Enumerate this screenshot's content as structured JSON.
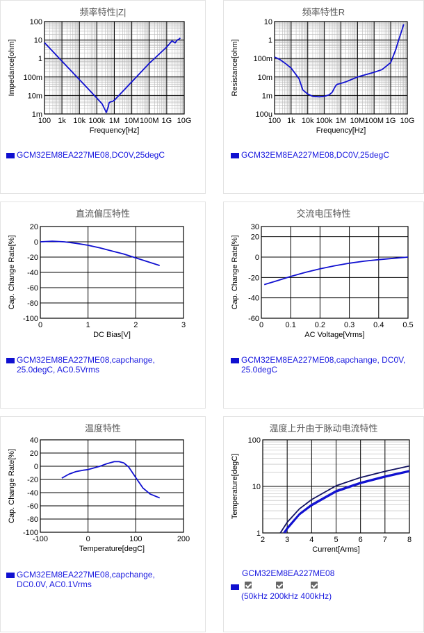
{
  "colors": {
    "curve": "#1010d0",
    "curve_dark": "#101060",
    "legend_text": "#1a1adf",
    "grid": "#000000"
  },
  "panels": [
    {
      "title": "频率特性|Z|",
      "legend_lines": [
        "GCM32EM8EA227ME08,DC0V,25degC"
      ]
    },
    {
      "title": "频率特性R",
      "legend_lines": [
        "GCM32EM8EA227ME08,DC0V,25degC"
      ]
    },
    {
      "title": "直流偏压特性",
      "legend_lines": [
        "GCM32EM8EA227ME08,capchange,",
        "25.0degC, AC0.5Vrms"
      ]
    },
    {
      "title": "交流电压特性",
      "legend_lines": [
        "GCM32EM8EA227ME08,capchange, DC0V,",
        "25.0degC"
      ]
    },
    {
      "title": "温度特性",
      "legend_lines": [
        "GCM32EM8EA227ME08,capchange,",
        "DC0.0V, AC0.1Vrms"
      ]
    },
    {
      "title": "温度上升由于脉动电流特性",
      "legend_lines": [
        "GCM32EM8EA227ME08"
      ],
      "checks": [
        "50kHz",
        "200kHz",
        "400kHz"
      ],
      "paren_open": "(",
      "paren_close": ")"
    }
  ],
  "chart_data": [
    {
      "type": "line",
      "xscale": "log",
      "yscale": "log",
      "xlabel": "Frequency[Hz]",
      "ylabel": "Impedance[ohm]",
      "xticks": [
        "100",
        "1k",
        "10k",
        "100k",
        "1M",
        "10M",
        "100M",
        "1G",
        "10G"
      ],
      "yticks": [
        "1m",
        "10m",
        "100m",
        "1",
        "10",
        "100"
      ],
      "xlim": [
        100,
        10000000000
      ],
      "ylim": [
        0.001,
        100
      ],
      "series": [
        {
          "name": "GCM32EM8EA227ME08,DC0V,25degC",
          "x": [
            100,
            1000,
            10000,
            100000,
            200000,
            350000,
            450000,
            500000,
            600000,
            800000,
            1000000,
            2000000,
            10000000,
            100000000,
            1000000000,
            2000000000,
            3000000000,
            4000000000,
            5000000000,
            6000000000
          ],
          "y": [
            7.2,
            0.72,
            0.072,
            0.0072,
            0.0035,
            0.0012,
            0.0025,
            0.004,
            0.0045,
            0.0048,
            0.0055,
            0.011,
            0.055,
            0.55,
            4.2,
            9,
            7,
            10,
            11,
            13
          ]
        }
      ]
    },
    {
      "type": "line",
      "xscale": "log",
      "yscale": "log",
      "xlabel": "Frequency[Hz]",
      "ylabel": "Resistance[ohm]",
      "xticks": [
        "100",
        "1k",
        "10k",
        "100k",
        "1M",
        "10M",
        "100M",
        "1G",
        "10G"
      ],
      "yticks": [
        "100u",
        "1m",
        "10m",
        "100m",
        "1",
        "10"
      ],
      "xlim": [
        100,
        10000000000
      ],
      "ylim": [
        0.0001,
        10
      ],
      "series": [
        {
          "name": "GCM32EM8EA227ME08,DC0V,25degC",
          "x": [
            100,
            200,
            500,
            1000,
            3000,
            5000,
            10000,
            20000,
            50000,
            100000,
            200000,
            300000,
            400000,
            500000,
            600000,
            1000000,
            2000000,
            10000000,
            100000000,
            300000000,
            1000000000,
            2000000000,
            3000000000,
            5000000000,
            6000000000
          ],
          "y": [
            0.12,
            0.09,
            0.05,
            0.03,
            0.008,
            0.002,
            0.0012,
            0.0009,
            0.00085,
            0.0009,
            0.0011,
            0.0015,
            0.0025,
            0.0035,
            0.004,
            0.0045,
            0.0055,
            0.01,
            0.018,
            0.025,
            0.06,
            0.3,
            1.0,
            4.0,
            7.0
          ]
        }
      ]
    },
    {
      "type": "line",
      "xlabel": "DC Bias[V]",
      "ylabel": "Cap. Change Rate[%]",
      "xlim": [
        0,
        3
      ],
      "ylim": [
        -100,
        20
      ],
      "xticks": [
        0,
        1,
        2,
        3
      ],
      "yticks": [
        20,
        0,
        -20,
        -40,
        -60,
        -80,
        -100
      ],
      "series": [
        {
          "name": "GCM32EM8EA227ME08,capchange,25.0degC, AC0.5Vrms",
          "x": [
            0,
            0.25,
            0.5,
            0.75,
            1,
            1.25,
            1.5,
            1.75,
            2,
            2.25,
            2.5
          ],
          "y": [
            0,
            0.8,
            0,
            -2,
            -4.5,
            -8,
            -12,
            -16,
            -21,
            -26,
            -31
          ]
        }
      ]
    },
    {
      "type": "line",
      "xlabel": "AC Voltage[Vrms]",
      "ylabel": "Cap. Change Rate[%]",
      "xlim": [
        0,
        0.5
      ],
      "ylim": [
        -60,
        30
      ],
      "xticks": [
        0,
        0.1,
        0.2,
        0.3,
        0.4,
        0.5
      ],
      "yticks": [
        30,
        20,
        0,
        -20,
        -40,
        -60
      ],
      "series": [
        {
          "name": "GCM32EM8EA227ME08,capchange, DC0V,25.0degC",
          "x": [
            0.01,
            0.05,
            0.1,
            0.15,
            0.2,
            0.25,
            0.3,
            0.35,
            0.4,
            0.45,
            0.5
          ],
          "y": [
            -27,
            -23.5,
            -19,
            -15,
            -11.5,
            -8.5,
            -6,
            -4,
            -2.5,
            -1.2,
            0
          ]
        }
      ]
    },
    {
      "type": "line",
      "xlabel": "Temperature[degC]",
      "ylabel": "Cap. Change Rate[%]",
      "xlim": [
        -100,
        200
      ],
      "ylim": [
        -100,
        40
      ],
      "xticks": [
        -100,
        0,
        100,
        200
      ],
      "yticks": [
        40,
        20,
        0,
        -20,
        -40,
        -60,
        -80,
        -100
      ],
      "series": [
        {
          "name": "GCM32EM8EA227ME08,capchange,DC0.0V, AC0.1Vrms",
          "x": [
            -55,
            -40,
            -25,
            -10,
            0,
            10,
            25,
            40,
            55,
            65,
            75,
            85,
            100,
            115,
            130,
            150
          ],
          "y": [
            -18,
            -12,
            -8,
            -6,
            -5,
            -3,
            0,
            4,
            7,
            7,
            5,
            -1,
            -17,
            -33,
            -42,
            -48
          ]
        }
      ]
    },
    {
      "type": "line",
      "yscale": "log",
      "xlabel": "Current[Arms]",
      "ylabel": "Temperature[degC]",
      "xlim": [
        2,
        8
      ],
      "ylim": [
        1,
        100
      ],
      "xticks": [
        2,
        3,
        4,
        5,
        6,
        7,
        8
      ],
      "yticks": [
        "1",
        "10",
        "100"
      ],
      "series": [
        {
          "name": "50kHz",
          "x": [
            2.72,
            3,
            3.5,
            4,
            5,
            6,
            7,
            8
          ],
          "y": [
            1,
            1.7,
            3.3,
            5.2,
            10.3,
            15.5,
            21,
            27.5
          ]
        },
        {
          "name": "200kHz",
          "x": [
            2.85,
            3,
            3.5,
            4,
            5,
            6,
            7,
            8
          ],
          "y": [
            1,
            1.3,
            2.6,
            4.1,
            8.1,
            12.2,
            16.7,
            21.8
          ]
        },
        {
          "name": "400kHz",
          "x": [
            2.92,
            3,
            3.5,
            4,
            5,
            6,
            7,
            8
          ],
          "y": [
            1,
            1.2,
            2.45,
            3.85,
            7.6,
            11.5,
            15.8,
            20.8
          ]
        }
      ]
    }
  ]
}
